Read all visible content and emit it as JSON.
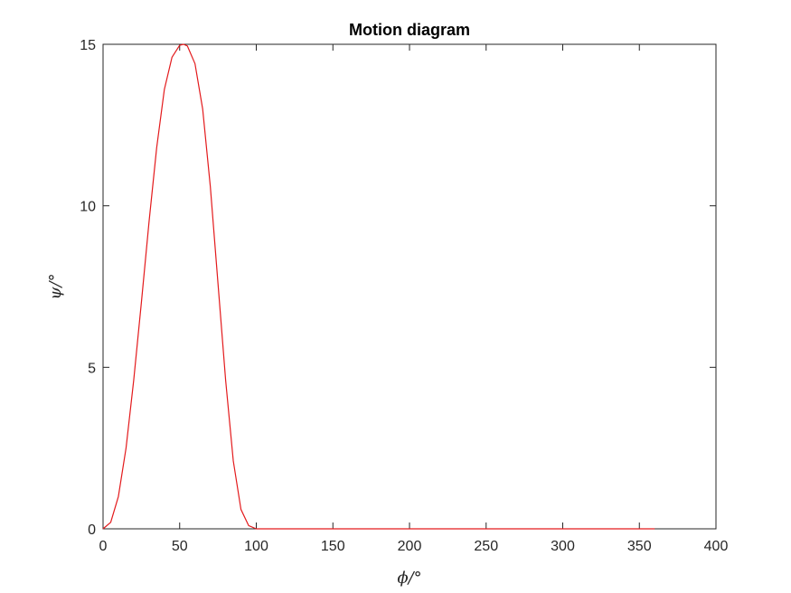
{
  "chart_data": {
    "type": "line",
    "title": "Motion diagram",
    "xlabel": "ϕ/°",
    "ylabel": "ψ/°",
    "xlim": [
      0,
      400
    ],
    "ylim": [
      0,
      15
    ],
    "xticks": [
      0,
      50,
      100,
      150,
      200,
      250,
      300,
      350,
      400
    ],
    "yticks": [
      0,
      5,
      10,
      15
    ],
    "grid": false,
    "series": [
      {
        "name": "psi",
        "color": "#e31a1c",
        "x": [
          0,
          5,
          10,
          15,
          20,
          25,
          30,
          35,
          40,
          45,
          50,
          52.5,
          55,
          60,
          65,
          70,
          75,
          80,
          85,
          90,
          95,
          100,
          105,
          110,
          150,
          200,
          250,
          300,
          350,
          360
        ],
        "y": [
          0,
          0.2,
          1.0,
          2.5,
          4.6,
          7.0,
          9.5,
          11.8,
          13.6,
          14.6,
          14.97,
          15.0,
          14.95,
          14.4,
          13.0,
          10.6,
          7.6,
          4.6,
          2.1,
          0.6,
          0.1,
          0.0,
          0.0,
          0.0,
          0.0,
          0.0,
          0.0,
          0.0,
          0.0,
          0.0
        ]
      }
    ]
  }
}
